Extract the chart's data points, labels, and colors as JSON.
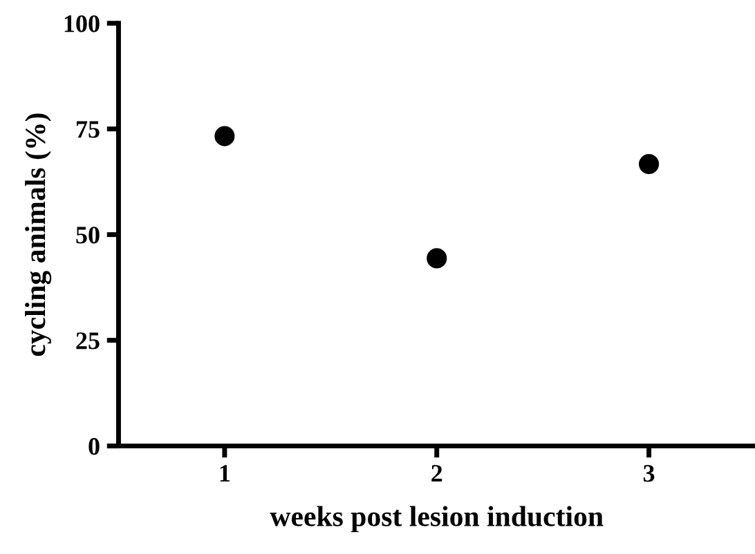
{
  "chart_data": {
    "type": "scatter",
    "xlabel": "weeks post lesion induction",
    "ylabel": "cycling animals (%)",
    "x": [
      1,
      2,
      3
    ],
    "series": [
      {
        "color": "#000000",
        "values": [
          73.3,
          44.4,
          66.7
        ]
      }
    ],
    "marker": "circle",
    "xlim": [
      0.5,
      3.5
    ],
    "xticks": [
      1,
      2,
      3
    ],
    "ylim": [
      0,
      100
    ],
    "yticks": [
      0,
      25,
      50,
      75,
      100
    ],
    "grid": false,
    "legend": false
  }
}
